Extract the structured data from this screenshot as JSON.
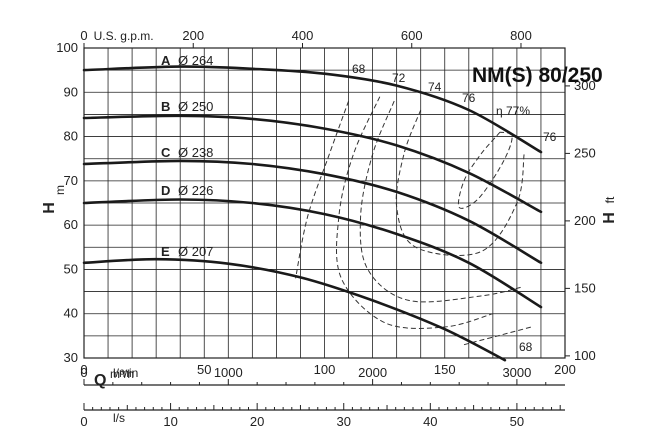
{
  "chart_data": {
    "type": "line",
    "title": "NM(S) 80/250",
    "xlabel": "Q",
    "x_unit": "m³/h",
    "ylabel": "H",
    "y_unit": "m",
    "y2_unit": "H ft",
    "xlim": [
      0,
      200
    ],
    "ylim": [
      30,
      100
    ],
    "x_ticks": [
      0,
      50,
      100,
      150,
      200
    ],
    "y_ticks": [
      30,
      40,
      50,
      60,
      70,
      80,
      90,
      100
    ],
    "gpm_axis": {
      "label": "U.S. g.p.m.",
      "ticks": [
        0,
        200,
        400,
        600,
        800
      ]
    },
    "lmin_axis": {
      "label": "l/min",
      "ticks": [
        0,
        1000,
        2000,
        3000
      ]
    },
    "ls_axis": {
      "label": "l/s",
      "ticks": [
        0,
        10,
        20,
        30,
        40,
        50
      ]
    },
    "ft_axis": {
      "ticks": [
        100,
        150,
        200,
        250,
        300
      ]
    },
    "grid": true,
    "series": [
      {
        "name": "A",
        "diameter": "Ø 264",
        "points": [
          [
            0,
            95
          ],
          [
            40,
            95.8
          ],
          [
            70,
            95.3
          ],
          [
            100,
            94.2
          ],
          [
            130,
            91.5
          ],
          [
            160,
            86
          ],
          [
            190,
            76.5
          ]
        ]
      },
      {
        "name": "B",
        "diameter": "Ø 250",
        "points": [
          [
            0,
            84.2
          ],
          [
            40,
            84.7
          ],
          [
            70,
            84
          ],
          [
            100,
            81.8
          ],
          [
            130,
            78
          ],
          [
            160,
            71.8
          ],
          [
            190,
            63
          ]
        ]
      },
      {
        "name": "C",
        "diameter": "Ø 238",
        "points": [
          [
            0,
            73.8
          ],
          [
            40,
            74.5
          ],
          [
            70,
            73.8
          ],
          [
            100,
            71.5
          ],
          [
            130,
            67.5
          ],
          [
            160,
            61
          ],
          [
            190,
            51.5
          ]
        ]
      },
      {
        "name": "D",
        "diameter": "Ø 226",
        "points": [
          [
            0,
            65
          ],
          [
            40,
            65.8
          ],
          [
            70,
            65
          ],
          [
            100,
            62.5
          ],
          [
            130,
            58
          ],
          [
            160,
            51.5
          ],
          [
            190,
            41.5
          ]
        ]
      },
      {
        "name": "E",
        "diameter": "Ø 207",
        "points": [
          [
            0,
            51.5
          ],
          [
            30,
            52.3
          ],
          [
            60,
            51.3
          ],
          [
            90,
            48.2
          ],
          [
            120,
            43
          ],
          [
            150,
            36.5
          ],
          [
            175,
            29.5
          ]
        ]
      }
    ],
    "efficiency_labels": [
      "68",
      "72",
      "74",
      "76",
      "η 77%",
      "76",
      "68"
    ],
    "efficiency_contours": [
      {
        "label": "68",
        "points": [
          [
            110,
            88
          ],
          [
            102,
            76
          ],
          [
            93,
            62
          ],
          [
            88,
            48
          ]
        ]
      },
      {
        "label": "72",
        "points": [
          [
            123,
            89
          ],
          [
            112,
            76
          ],
          [
            106,
            62
          ],
          [
            107,
            48
          ],
          [
            125,
            38
          ],
          [
            150,
            37
          ],
          [
            170,
            40
          ]
        ]
      },
      {
        "label": "74",
        "points": [
          [
            129,
            88
          ],
          [
            120,
            76
          ],
          [
            115,
            62
          ],
          [
            118,
            50
          ],
          [
            135,
            43
          ],
          [
            165,
            44
          ],
          [
            182,
            46
          ]
        ]
      },
      {
        "label": "76",
        "points": [
          [
            140,
            86
          ],
          [
            133,
            76
          ],
          [
            130,
            64
          ],
          [
            138,
            55
          ],
          [
            165,
            54
          ],
          [
            180,
            65
          ],
          [
            183,
            76
          ]
        ]
      },
      {
        "label": "η 77%",
        "points": [
          [
            173,
            81
          ],
          [
            165,
            76
          ],
          [
            158,
            70
          ],
          [
            156,
            64
          ],
          [
            164,
            66
          ],
          [
            174,
            74
          ],
          [
            178,
            80
          ],
          [
            173,
            81
          ]
        ]
      },
      {
        "label": "68",
        "points": [
          [
            158,
            33
          ],
          [
            172,
            35
          ],
          [
            186,
            37
          ]
        ]
      }
    ]
  }
}
